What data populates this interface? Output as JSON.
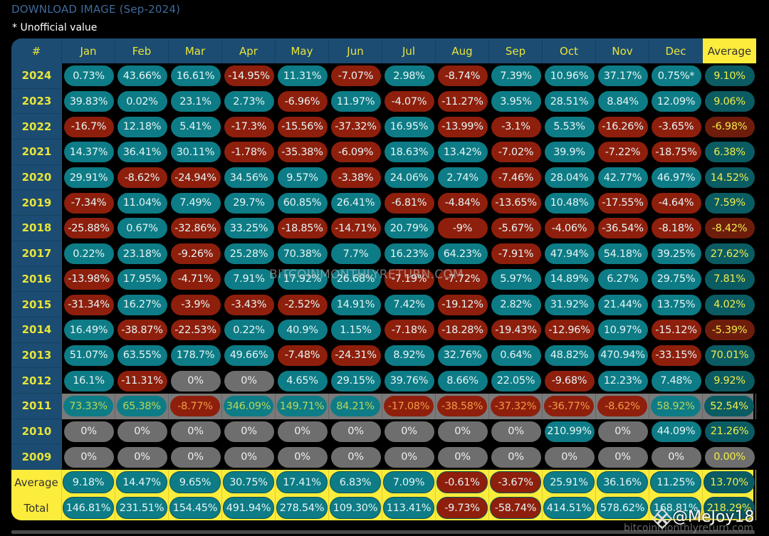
{
  "header": {
    "title": "DOWNLOAD IMAGE (Sep-2024)",
    "note": "* Unofficial value"
  },
  "table": {
    "columns": [
      "#",
      "Jan",
      "Feb",
      "Mar",
      "Apr",
      "May",
      "Jun",
      "Jul",
      "Aug",
      "Sep",
      "Oct",
      "Nov",
      "Dec",
      "Average"
    ],
    "rows": [
      {
        "year": "2024",
        "values": [
          "0.73%",
          "43.66%",
          "16.61%",
          "-14.95%",
          "11.31%",
          "-7.07%",
          "2.98%",
          "-8.74%",
          "7.39%",
          "10.96%",
          "37.17%",
          "0.75%*"
        ],
        "average": "9.10%"
      },
      {
        "year": "2023",
        "values": [
          "39.83%",
          "0.02%",
          "23.1%",
          "2.73%",
          "-6.96%",
          "11.97%",
          "-4.07%",
          "-11.27%",
          "3.95%",
          "28.51%",
          "8.84%",
          "12.09%"
        ],
        "average": "9.06%"
      },
      {
        "year": "2022",
        "values": [
          "-16.7%",
          "12.18%",
          "5.41%",
          "-17.3%",
          "-15.56%",
          "-37.32%",
          "16.95%",
          "-13.99%",
          "-3.1%",
          "5.53%",
          "-16.26%",
          "-3.65%"
        ],
        "average": "-6.98%"
      },
      {
        "year": "2021",
        "values": [
          "14.37%",
          "36.41%",
          "30.11%",
          "-1.78%",
          "-35.38%",
          "-6.09%",
          "18.63%",
          "13.42%",
          "-7.02%",
          "39.9%",
          "-7.22%",
          "-18.75%"
        ],
        "average": "6.38%"
      },
      {
        "year": "2020",
        "values": [
          "29.91%",
          "-8.62%",
          "-24.94%",
          "34.56%",
          "9.57%",
          "-3.38%",
          "24.06%",
          "2.74%",
          "-7.46%",
          "28.04%",
          "42.77%",
          "46.97%"
        ],
        "average": "14.52%"
      },
      {
        "year": "2019",
        "values": [
          "-7.34%",
          "11.04%",
          "7.49%",
          "29.7%",
          "60.85%",
          "26.41%",
          "-6.81%",
          "-4.84%",
          "-13.65%",
          "10.48%",
          "-17.55%",
          "-4.64%"
        ],
        "average": "7.59%"
      },
      {
        "year": "2018",
        "values": [
          "-25.88%",
          "0.67%",
          "-32.86%",
          "33.25%",
          "-18.85%",
          "-14.71%",
          "20.79%",
          "-9%",
          "-5.67%",
          "-4.06%",
          "-36.54%",
          "-8.18%"
        ],
        "average": "-8.42%"
      },
      {
        "year": "2017",
        "values": [
          "0.22%",
          "23.18%",
          "-9.26%",
          "25.28%",
          "70.38%",
          "7.7%",
          "16.23%",
          "64.23%",
          "-7.91%",
          "47.94%",
          "54.18%",
          "39.25%"
        ],
        "average": "27.62%"
      },
      {
        "year": "2016",
        "values": [
          "-13.98%",
          "17.95%",
          "-4.71%",
          "7.91%",
          "17.92%",
          "26.68%",
          "-7.19%",
          "-7.72%",
          "5.97%",
          "14.89%",
          "6.27%",
          "29.75%"
        ],
        "average": "7.81%"
      },
      {
        "year": "2015",
        "values": [
          "-31.34%",
          "16.27%",
          "-3.9%",
          "-3.43%",
          "-2.52%",
          "14.91%",
          "7.42%",
          "-19.12%",
          "2.82%",
          "31.92%",
          "21.44%",
          "13.75%"
        ],
        "average": "4.02%"
      },
      {
        "year": "2014",
        "values": [
          "16.49%",
          "-38.87%",
          "-22.53%",
          "0.22%",
          "40.9%",
          "1.15%",
          "-7.18%",
          "-18.28%",
          "-19.43%",
          "-12.96%",
          "10.97%",
          "-15.12%"
        ],
        "average": "-5.39%"
      },
      {
        "year": "2013",
        "values": [
          "51.07%",
          "63.55%",
          "178.7%",
          "49.66%",
          "-7.48%",
          "-24.31%",
          "8.92%",
          "32.76%",
          "0.64%",
          "48.82%",
          "470.94%",
          "-33.15%"
        ],
        "average": "70.01%"
      },
      {
        "year": "2012",
        "values": [
          "16.1%",
          "-11.31%",
          "0%",
          "0%",
          "4.65%",
          "29.15%",
          "39.76%",
          "8.66%",
          "22.05%",
          "-9.68%",
          "12.23%",
          "7.48%"
        ],
        "average": "9.92%"
      },
      {
        "year": "2011",
        "values": [
          "73.33%",
          "65.38%",
          "-8.77%",
          "346.09%",
          "149.71%",
          "84.21%",
          "-17.08%",
          "-38.58%",
          "-37.32%",
          "-36.77%",
          "-8.62%",
          "58.92%"
        ],
        "average": "52.54%",
        "highlighted": true
      },
      {
        "year": "2010",
        "values": [
          "0%",
          "0%",
          "0%",
          "0%",
          "0%",
          "0%",
          "0%",
          "0%",
          "0%",
          "210.99%",
          "0%",
          "44.09%"
        ],
        "average": "21.26%"
      },
      {
        "year": "2009",
        "values": [
          "0%",
          "0%",
          "0%",
          "0%",
          "0%",
          "0%",
          "0%",
          "0%",
          "0%",
          "0%",
          "0%",
          "0%"
        ],
        "average": "0.00%"
      }
    ],
    "footer": [
      {
        "label": "Average",
        "values": [
          "9.18%",
          "14.47%",
          "9.65%",
          "30.75%",
          "17.41%",
          "6.83%",
          "7.09%",
          "-0.61%",
          "-3.67%",
          "25.91%",
          "36.16%",
          "11.25%"
        ],
        "average": "13.70%"
      },
      {
        "label": "Total",
        "values": [
          "146.81%",
          "231.51%",
          "154.45%",
          "491.94%",
          "278.54%",
          "109.30%",
          "113.41%",
          "-9.73%",
          "-58.74%",
          "414.51%",
          "578.62%",
          "168.81%"
        ],
        "average": "218.29%"
      }
    ]
  },
  "colors": {
    "positive": "#0d7c86",
    "negative": "#8e1f0c",
    "zero": "#6e6e6e",
    "header_bg": "#1c4c72",
    "header_text": "#e8e43a",
    "average_header_bg": "#fcec3c",
    "footer_bg": "#fcec3c"
  },
  "watermarks": {
    "center": "BITCOINMONTHLYRETURN.COM",
    "bottom_right": "bitcoinmonthlyreturn.com",
    "handle": "@MeJoy18"
  }
}
